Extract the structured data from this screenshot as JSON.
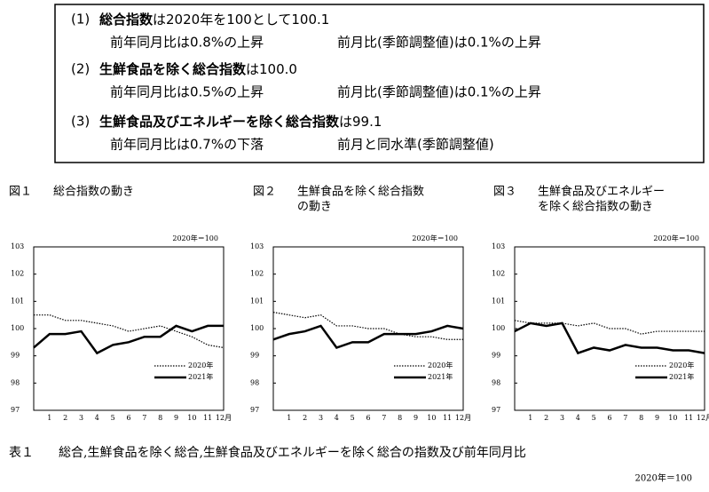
{
  "summary": [
    {
      "number": "(1)",
      "name": "総合指数",
      "text": "は2020年を100として100.1",
      "details": [
        "前年同月比は0.8%の上昇",
        "前月比(季節調整値)は0.1%の上昇"
      ]
    },
    {
      "number": "(2)",
      "name": "生鮮食品を除く総合指数",
      "text": "は100.0",
      "details": [
        "前年同月比は0.5%の上昇",
        "前月比(季節調整値)は0.1%の上昇"
      ]
    },
    {
      "number": "(3)",
      "name": "生鮮食品及びエネルギーを除く総合指数",
      "text": "は99.1",
      "details": [
        "前年同月比は0.7%の下落",
        "前月と同水準(季節調整値)"
      ]
    }
  ],
  "chart_data": [
    {
      "type": "line",
      "figure": "図１",
      "title": [
        "総合指数の動き"
      ],
      "note": "2020年＝100",
      "categories": [
        null,
        "1",
        "2",
        "3",
        "4",
        "5",
        "6",
        "7",
        "8",
        "9",
        "10",
        "11",
        "12月"
      ],
      "ylim": [
        97,
        103
      ],
      "yticks": [
        97,
        98,
        99,
        100,
        101,
        102,
        103
      ],
      "series": [
        {
          "name": "2020年",
          "color": "#000000",
          "style": "dotted",
          "values": [
            100.5,
            100.5,
            100.3,
            100.3,
            100.2,
            100.1,
            99.9,
            100.0,
            100.1,
            99.9,
            99.7,
            99.4,
            99.3
          ]
        },
        {
          "name": "2021年",
          "color": "#000000",
          "style": "solid",
          "values": [
            99.3,
            99.8,
            99.8,
            99.9,
            99.1,
            99.4,
            99.5,
            99.7,
            99.7,
            100.1,
            99.9,
            100.1,
            100.1
          ]
        }
      ]
    },
    {
      "type": "line",
      "figure": "図２",
      "title": [
        "生鮮食品を除く総合指数",
        "の動き"
      ],
      "note": "2020年＝100",
      "categories": [
        null,
        "1",
        "2",
        "3",
        "4",
        "5",
        "6",
        "7",
        "8",
        "9",
        "10",
        "11",
        "12月"
      ],
      "ylim": [
        97,
        103
      ],
      "yticks": [
        97,
        98,
        99,
        100,
        101,
        102,
        103
      ],
      "series": [
        {
          "name": "2020年",
          "color": "#000000",
          "style": "dotted",
          "values": [
            100.6,
            100.5,
            100.4,
            100.5,
            100.1,
            100.1,
            100.0,
            100.0,
            99.8,
            99.7,
            99.7,
            99.6,
            99.6
          ]
        },
        {
          "name": "2021年",
          "color": "#000000",
          "style": "solid",
          "values": [
            99.6,
            99.8,
            99.9,
            100.1,
            99.3,
            99.5,
            99.5,
            99.8,
            99.8,
            99.8,
            99.9,
            100.1,
            100.0
          ]
        }
      ]
    },
    {
      "type": "line",
      "figure": "図３",
      "title": [
        "生鮮食品及びエネルギー",
        "を除く総合指数の動き"
      ],
      "note": "2020年＝100",
      "categories": [
        null,
        "1",
        "2",
        "3",
        "4",
        "5",
        "6",
        "7",
        "8",
        "9",
        "10",
        "11",
        "12月"
      ],
      "ylim": [
        97,
        103
      ],
      "yticks": [
        97,
        98,
        99,
        100,
        101,
        102,
        103
      ],
      "series": [
        {
          "name": "2020年",
          "color": "#000000",
          "style": "dotted",
          "values": [
            100.3,
            100.2,
            100.2,
            100.2,
            100.1,
            100.2,
            100.0,
            100.0,
            99.8,
            99.9,
            99.9,
            99.9,
            99.9
          ]
        },
        {
          "name": "2021年",
          "color": "#000000",
          "style": "solid",
          "values": [
            99.9,
            100.2,
            100.1,
            100.2,
            99.1,
            99.3,
            99.2,
            99.4,
            99.3,
            99.3,
            99.2,
            99.2,
            99.1
          ]
        }
      ]
    }
  ],
  "table": {
    "title": "表１",
    "caption": "総合,生鮮食品を除く総合,生鮮食品及びエネルギーを除く総合の指数及び前年同月比",
    "note": "2020年＝100"
  }
}
